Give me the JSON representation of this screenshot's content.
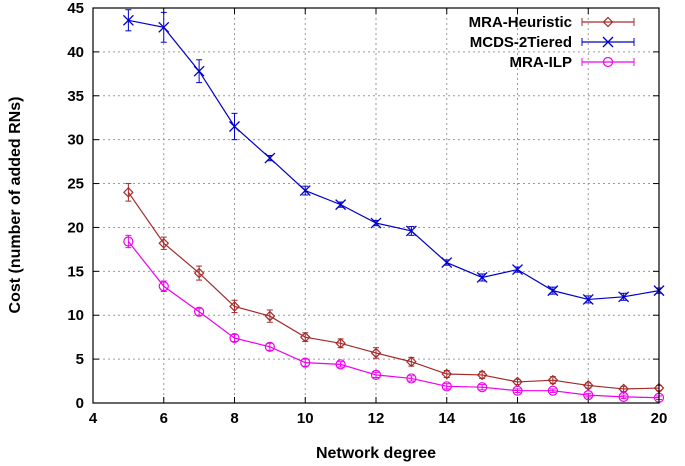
{
  "chart_data": {
    "type": "line",
    "title": "",
    "xlabel": "Network degree",
    "ylabel": "Cost (number of added RNs)",
    "xlim": [
      4,
      20
    ],
    "ylim": [
      0,
      45
    ],
    "xticks": [
      4,
      6,
      8,
      10,
      12,
      14,
      16,
      18,
      20
    ],
    "yticks": [
      0,
      5,
      10,
      15,
      20,
      25,
      30,
      35,
      40,
      45
    ],
    "grid": true,
    "legend_position": "top-right",
    "x": [
      5,
      6,
      7,
      8,
      9,
      10,
      11,
      12,
      13,
      14,
      15,
      16,
      17,
      18,
      19,
      20
    ],
    "series": [
      {
        "name": "MRA-Heuristic",
        "color": "#a52a2a",
        "marker": "diamond",
        "values": [
          24.0,
          18.2,
          14.8,
          11.0,
          9.9,
          7.5,
          6.8,
          5.7,
          4.7,
          3.3,
          3.2,
          2.4,
          2.6,
          2.0,
          1.6,
          1.7
        ],
        "errors": [
          1.0,
          0.7,
          0.8,
          0.7,
          0.7,
          0.5,
          0.5,
          0.6,
          0.5,
          0.4,
          0.4,
          0.3,
          0.4,
          0.3,
          0.3,
          0.3
        ]
      },
      {
        "name": "MCDS-2Tiered",
        "color": "#0000cc",
        "marker": "x",
        "values": [
          43.6,
          42.8,
          37.8,
          31.5,
          27.9,
          24.2,
          22.6,
          20.5,
          19.6,
          16.0,
          14.3,
          15.2,
          12.8,
          11.8,
          12.1,
          12.8
        ],
        "errors": [
          1.2,
          1.7,
          1.3,
          1.5,
          0.3,
          0.5,
          0.3,
          0.3,
          0.5,
          0.3,
          0.4,
          0.3,
          0.4,
          0.4,
          0.4,
          0.3
        ]
      },
      {
        "name": "MRA-ILP",
        "color": "#ee00ee",
        "marker": "circle",
        "values": [
          18.4,
          13.3,
          10.4,
          7.4,
          6.4,
          4.6,
          4.4,
          3.2,
          2.8,
          1.9,
          1.8,
          1.4,
          1.4,
          0.9,
          0.7,
          0.6
        ],
        "errors": [
          0.7,
          0.6,
          0.4,
          0.4,
          0.4,
          0.4,
          0.3,
          0.3,
          0.3,
          0.3,
          0.3,
          0.2,
          0.2,
          0.2,
          0.2,
          0.2
        ]
      }
    ]
  }
}
